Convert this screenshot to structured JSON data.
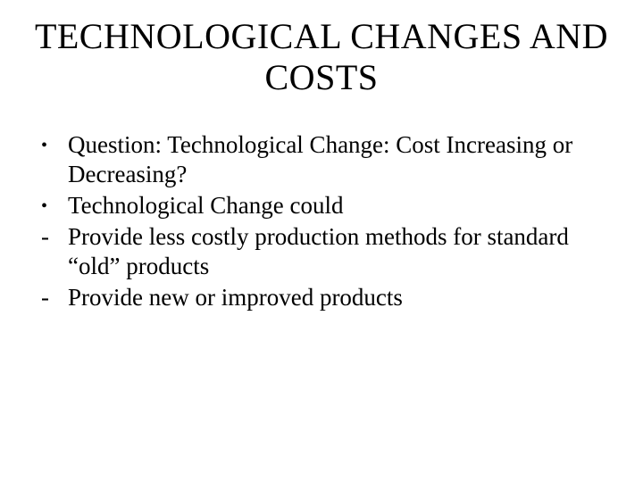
{
  "slide": {
    "title": "TECHNOLOGICAL CHANGES AND COSTS",
    "items": [
      {
        "marker": "•",
        "markerType": "bullet",
        "text": "Question: Technological Change: Cost Increasing or Decreasing?"
      },
      {
        "marker": "•",
        "markerType": "bullet",
        "text": "Technological Change could"
      },
      {
        "marker": "-",
        "markerType": "dash",
        "text": "Provide less costly production methods for standard “old” products"
      },
      {
        "marker": "-",
        "markerType": "dash",
        "text": "Provide new or improved products"
      }
    ]
  },
  "style": {
    "background_color": "#ffffff",
    "text_color": "#000000",
    "font_family": "Times New Roman",
    "title_fontsize": 40,
    "body_fontsize": 27
  }
}
